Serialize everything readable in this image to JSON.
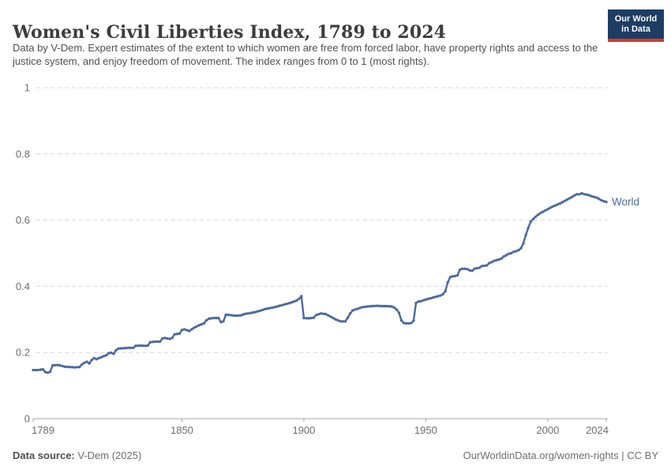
{
  "header": {
    "title": "Women's Civil Liberties Index, 1789 to 2024",
    "subtitle": "Data by V-Dem. Expert estimates of the extent to which women are free from forced labor, have property rights and access to the justice system, and enjoy freedom of movement. The index ranges from 0 to 1 (most rights)."
  },
  "logo": {
    "line1": "Our World",
    "line2": "in Data"
  },
  "footer": {
    "source_label": "Data source:",
    "source_value": " V-Dem (2025)",
    "rights": "OurWorldinData.org/women-rights | CC BY"
  },
  "colors": {
    "line": "#4c6a9c",
    "grid": "#d9d9d9",
    "axis": "#a3a3a3",
    "tick_text": "#6e6e6e",
    "logo_bg": "#1d3d63",
    "logo_accent": "#d73a27"
  },
  "chart_data": {
    "type": "line",
    "title": "Women's Civil Liberties Index, 1789 to 2024",
    "xlabel": "",
    "ylabel": "",
    "xlim": [
      1789,
      2024
    ],
    "ylim": [
      0,
      1
    ],
    "grid": "dashed-horizontal",
    "legend_position": "end-of-line-label",
    "x_ticks": [
      {
        "value": 1789,
        "label": "1789"
      },
      {
        "value": 1850,
        "label": "1850"
      },
      {
        "value": 1900,
        "label": "1900"
      },
      {
        "value": 1950,
        "label": "1950"
      },
      {
        "value": 2000,
        "label": "2000"
      },
      {
        "value": 2024,
        "label": "2024"
      }
    ],
    "y_ticks": [
      {
        "value": 0,
        "label": "0"
      },
      {
        "value": 0.2,
        "label": "0.2"
      },
      {
        "value": 0.4,
        "label": "0.4"
      },
      {
        "value": 0.6,
        "label": "0.6"
      },
      {
        "value": 0.8,
        "label": "0.8"
      },
      {
        "value": 1,
        "label": "1"
      }
    ],
    "series": [
      {
        "name": "World",
        "color": "#4c6a9c",
        "points": [
          [
            1789,
            0.147
          ],
          [
            1791,
            0.147
          ],
          [
            1793,
            0.149
          ],
          [
            1794,
            0.141
          ],
          [
            1795,
            0.139
          ],
          [
            1796,
            0.142
          ],
          [
            1797,
            0.161
          ],
          [
            1799,
            0.162
          ],
          [
            1800,
            0.161
          ],
          [
            1802,
            0.157
          ],
          [
            1804,
            0.156
          ],
          [
            1806,
            0.155
          ],
          [
            1808,
            0.156
          ],
          [
            1809,
            0.164
          ],
          [
            1810,
            0.169
          ],
          [
            1811,
            0.172
          ],
          [
            1812,
            0.167
          ],
          [
            1813,
            0.177
          ],
          [
            1814,
            0.183
          ],
          [
            1815,
            0.18
          ],
          [
            1816,
            0.183
          ],
          [
            1817,
            0.186
          ],
          [
            1818,
            0.189
          ],
          [
            1819,
            0.192
          ],
          [
            1820,
            0.198
          ],
          [
            1821,
            0.199
          ],
          [
            1822,
            0.196
          ],
          [
            1823,
            0.207
          ],
          [
            1824,
            0.212
          ],
          [
            1826,
            0.213
          ],
          [
            1828,
            0.214
          ],
          [
            1830,
            0.214
          ],
          [
            1831,
            0.22
          ],
          [
            1833,
            0.221
          ],
          [
            1835,
            0.22
          ],
          [
            1836,
            0.221
          ],
          [
            1837,
            0.231
          ],
          [
            1839,
            0.233
          ],
          [
            1841,
            0.233
          ],
          [
            1842,
            0.242
          ],
          [
            1843,
            0.244
          ],
          [
            1845,
            0.241
          ],
          [
            1846,
            0.244
          ],
          [
            1847,
            0.255
          ],
          [
            1849,
            0.257
          ],
          [
            1850,
            0.268
          ],
          [
            1851,
            0.27
          ],
          [
            1853,
            0.265
          ],
          [
            1855,
            0.275
          ],
          [
            1857,
            0.282
          ],
          [
            1859,
            0.288
          ],
          [
            1860,
            0.297
          ],
          [
            1861,
            0.302
          ],
          [
            1863,
            0.304
          ],
          [
            1865,
            0.304
          ],
          [
            1866,
            0.292
          ],
          [
            1867,
            0.294
          ],
          [
            1868,
            0.314
          ],
          [
            1870,
            0.313
          ],
          [
            1872,
            0.311
          ],
          [
            1874,
            0.312
          ],
          [
            1876,
            0.317
          ],
          [
            1878,
            0.319
          ],
          [
            1880,
            0.322
          ],
          [
            1882,
            0.326
          ],
          [
            1884,
            0.331
          ],
          [
            1886,
            0.334
          ],
          [
            1888,
            0.337
          ],
          [
            1890,
            0.341
          ],
          [
            1892,
            0.345
          ],
          [
            1894,
            0.349
          ],
          [
            1896,
            0.354
          ],
          [
            1897,
            0.357
          ],
          [
            1898,
            0.362
          ],
          [
            1899,
            0.37
          ],
          [
            1900,
            0.304
          ],
          [
            1902,
            0.303
          ],
          [
            1904,
            0.305
          ],
          [
            1905,
            0.313
          ],
          [
            1907,
            0.318
          ],
          [
            1909,
            0.316
          ],
          [
            1911,
            0.308
          ],
          [
            1913,
            0.3
          ],
          [
            1915,
            0.294
          ],
          [
            1917,
            0.294
          ],
          [
            1918,
            0.305
          ],
          [
            1919,
            0.318
          ],
          [
            1920,
            0.327
          ],
          [
            1922,
            0.332
          ],
          [
            1924,
            0.337
          ],
          [
            1926,
            0.339
          ],
          [
            1928,
            0.34
          ],
          [
            1930,
            0.341
          ],
          [
            1932,
            0.34
          ],
          [
            1934,
            0.34
          ],
          [
            1936,
            0.339
          ],
          [
            1937,
            0.336
          ],
          [
            1938,
            0.33
          ],
          [
            1939,
            0.32
          ],
          [
            1940,
            0.297
          ],
          [
            1941,
            0.289
          ],
          [
            1942,
            0.288
          ],
          [
            1943,
            0.288
          ],
          [
            1944,
            0.289
          ],
          [
            1945,
            0.296
          ],
          [
            1946,
            0.35
          ],
          [
            1947,
            0.354
          ],
          [
            1948,
            0.355
          ],
          [
            1950,
            0.36
          ],
          [
            1952,
            0.364
          ],
          [
            1954,
            0.368
          ],
          [
            1956,
            0.372
          ],
          [
            1957,
            0.376
          ],
          [
            1958,
            0.385
          ],
          [
            1959,
            0.412
          ],
          [
            1960,
            0.428
          ],
          [
            1961,
            0.43
          ],
          [
            1962,
            0.431
          ],
          [
            1963,
            0.433
          ],
          [
            1964,
            0.45
          ],
          [
            1965,
            0.453
          ],
          [
            1966,
            0.453
          ],
          [
            1967,
            0.452
          ],
          [
            1968,
            0.448
          ],
          [
            1969,
            0.447
          ],
          [
            1970,
            0.453
          ],
          [
            1971,
            0.455
          ],
          [
            1972,
            0.456
          ],
          [
            1973,
            0.461
          ],
          [
            1974,
            0.462
          ],
          [
            1975,
            0.463
          ],
          [
            1976,
            0.47
          ],
          [
            1977,
            0.473
          ],
          [
            1978,
            0.477
          ],
          [
            1979,
            0.479
          ],
          [
            1980,
            0.481
          ],
          [
            1981,
            0.484
          ],
          [
            1982,
            0.49
          ],
          [
            1983,
            0.494
          ],
          [
            1984,
            0.498
          ],
          [
            1985,
            0.5
          ],
          [
            1986,
            0.504
          ],
          [
            1987,
            0.506
          ],
          [
            1988,
            0.509
          ],
          [
            1989,
            0.515
          ],
          [
            1990,
            0.53
          ],
          [
            1991,
            0.555
          ],
          [
            1992,
            0.576
          ],
          [
            1993,
            0.595
          ],
          [
            1994,
            0.603
          ],
          [
            1995,
            0.61
          ],
          [
            1996,
            0.616
          ],
          [
            1997,
            0.621
          ],
          [
            1998,
            0.625
          ],
          [
            1999,
            0.629
          ],
          [
            2000,
            0.633
          ],
          [
            2001,
            0.637
          ],
          [
            2002,
            0.641
          ],
          [
            2003,
            0.644
          ],
          [
            2004,
            0.647
          ],
          [
            2005,
            0.65
          ],
          [
            2006,
            0.654
          ],
          [
            2007,
            0.658
          ],
          [
            2008,
            0.662
          ],
          [
            2009,
            0.666
          ],
          [
            2010,
            0.67
          ],
          [
            2011,
            0.675
          ],
          [
            2012,
            0.678
          ],
          [
            2013,
            0.678
          ],
          [
            2014,
            0.681
          ],
          [
            2015,
            0.678
          ],
          [
            2016,
            0.677
          ],
          [
            2017,
            0.675
          ],
          [
            2018,
            0.672
          ],
          [
            2019,
            0.67
          ],
          [
            2020,
            0.668
          ],
          [
            2021,
            0.664
          ],
          [
            2022,
            0.66
          ],
          [
            2023,
            0.657
          ],
          [
            2024,
            0.655
          ]
        ]
      }
    ]
  }
}
